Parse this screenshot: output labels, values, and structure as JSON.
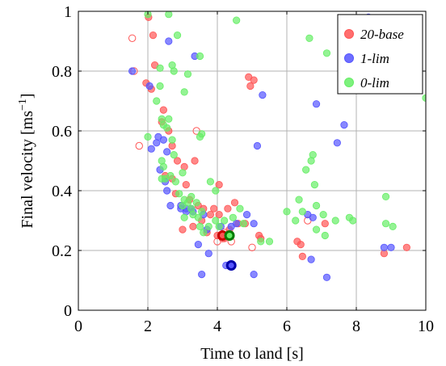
{
  "chart_data": {
    "type": "scatter",
    "xlabel": "Time to land [s]",
    "ylabel": "Final velocity [ms",
    "ylabel_unit_sup": "−1",
    "ylabel_close": "]",
    "xlim": [
      0,
      10
    ],
    "ylim": [
      0,
      1
    ],
    "xticks": [
      0,
      2,
      4,
      6,
      8,
      10
    ],
    "xtick_labels": [
      "0",
      "2",
      "4",
      "6",
      "8",
      "10"
    ],
    "yticks": [
      0,
      0.2,
      0.4,
      0.6,
      0.8,
      1
    ],
    "ytick_labels": [
      "0",
      "0.2",
      "0.4",
      "0.6",
      "0.8",
      "1"
    ],
    "grid": true,
    "legend_position": "top-right",
    "series": [
      {
        "name": "20-base",
        "color": "#ff5555",
        "points": [
          [
            2.02,
            0.98
          ],
          [
            2.15,
            0.92
          ],
          [
            2.2,
            0.82
          ],
          [
            1.95,
            0.76
          ],
          [
            2.1,
            0.74
          ],
          [
            2.45,
            0.67
          ],
          [
            2.6,
            0.6
          ],
          [
            2.7,
            0.55
          ],
          [
            2.85,
            0.5
          ],
          [
            3.05,
            0.48
          ],
          [
            3.35,
            0.5
          ],
          [
            3.1,
            0.42
          ],
          [
            2.7,
            0.44
          ],
          [
            2.5,
            0.45
          ],
          [
            2.8,
            0.39
          ],
          [
            3.2,
            0.37
          ],
          [
            3.45,
            0.35
          ],
          [
            3.9,
            0.34
          ],
          [
            4.05,
            0.32
          ],
          [
            4.3,
            0.34
          ],
          [
            4.5,
            0.36
          ],
          [
            4.6,
            0.29
          ],
          [
            3.8,
            0.32
          ],
          [
            3.55,
            0.3
          ],
          [
            3.3,
            0.28
          ],
          [
            3.0,
            0.27
          ],
          [
            3.7,
            0.26
          ],
          [
            4.0,
            0.25
          ],
          [
            4.2,
            0.24
          ],
          [
            4.35,
            0.27
          ],
          [
            4.8,
            0.29
          ],
          [
            4.9,
            0.78
          ],
          [
            4.95,
            0.75
          ],
          [
            5.05,
            0.77
          ],
          [
            5.2,
            0.25
          ],
          [
            5.25,
            0.24
          ],
          [
            6.3,
            0.23
          ],
          [
            6.4,
            0.22
          ],
          [
            6.45,
            0.18
          ],
          [
            7.1,
            0.29
          ],
          [
            8.8,
            0.19
          ],
          [
            9.45,
            0.21
          ],
          [
            2.4,
            0.63
          ],
          [
            3.6,
            0.34
          ],
          [
            4.05,
            0.42
          ]
        ],
        "hollow": [
          [
            1.55,
            0.91
          ],
          [
            1.75,
            0.55
          ],
          [
            1.6,
            0.8
          ],
          [
            4.4,
            0.23
          ],
          [
            4.0,
            0.23
          ],
          [
            5.0,
            0.21
          ],
          [
            3.4,
            0.6
          ],
          [
            4.2,
            0.26
          ],
          [
            6.6,
            0.3
          ],
          [
            4.15,
            0.24
          ]
        ],
        "highlight": [
          4.15,
          0.25
        ]
      },
      {
        "name": "1-lim",
        "color": "#5555ff",
        "points": [
          [
            1.55,
            0.8
          ],
          [
            2.05,
            0.75
          ],
          [
            2.25,
            0.56
          ],
          [
            2.1,
            0.54
          ],
          [
            2.3,
            0.58
          ],
          [
            2.45,
            0.57
          ],
          [
            2.55,
            0.53
          ],
          [
            2.6,
            0.9
          ],
          [
            2.35,
            0.47
          ],
          [
            2.5,
            0.43
          ],
          [
            2.55,
            0.4
          ],
          [
            2.65,
            0.35
          ],
          [
            2.95,
            0.35
          ],
          [
            3.1,
            0.34
          ],
          [
            3.3,
            0.33
          ],
          [
            3.35,
            0.85
          ],
          [
            3.6,
            0.32
          ],
          [
            3.7,
            0.27
          ],
          [
            3.45,
            0.22
          ],
          [
            3.75,
            0.19
          ],
          [
            3.55,
            0.12
          ],
          [
            4.1,
            0.28
          ],
          [
            4.25,
            0.15
          ],
          [
            4.4,
            0.28
          ],
          [
            4.55,
            0.29
          ],
          [
            4.85,
            0.32
          ],
          [
            5.05,
            0.29
          ],
          [
            5.15,
            0.55
          ],
          [
            5.3,
            0.72
          ],
          [
            5.05,
            0.12
          ],
          [
            6.6,
            0.32
          ],
          [
            6.75,
            0.31
          ],
          [
            6.7,
            0.17
          ],
          [
            6.85,
            0.69
          ],
          [
            7.15,
            0.11
          ],
          [
            7.45,
            0.56
          ],
          [
            7.65,
            0.62
          ],
          [
            8.35,
            0.98
          ],
          [
            8.8,
            0.21
          ],
          [
            9.0,
            0.21
          ],
          [
            2.95,
            0.34
          ],
          [
            3.1,
            0.33
          ],
          [
            3.25,
            0.34
          ]
        ],
        "highlight": [
          4.4,
          0.15
        ]
      },
      {
        "name": "0-lim",
        "color": "#66ee66",
        "points": [
          [
            2.0,
            0.99
          ],
          [
            2.0,
            0.58
          ],
          [
            2.25,
            0.7
          ],
          [
            2.35,
            0.75
          ],
          [
            2.35,
            0.81
          ],
          [
            2.6,
            0.99
          ],
          [
            2.7,
            0.82
          ],
          [
            2.75,
            0.8
          ],
          [
            2.85,
            0.92
          ],
          [
            3.05,
            0.73
          ],
          [
            3.15,
            0.79
          ],
          [
            3.5,
            0.85
          ],
          [
            3.55,
            0.59
          ],
          [
            3.5,
            0.58
          ],
          [
            2.4,
            0.64
          ],
          [
            2.45,
            0.62
          ],
          [
            2.55,
            0.61
          ],
          [
            2.7,
            0.57
          ],
          [
            2.75,
            0.52
          ],
          [
            2.4,
            0.5
          ],
          [
            2.45,
            0.48
          ],
          [
            2.4,
            0.44
          ],
          [
            2.5,
            0.44
          ],
          [
            2.65,
            0.45
          ],
          [
            2.8,
            0.43
          ],
          [
            2.9,
            0.39
          ],
          [
            3.0,
            0.35
          ],
          [
            3.05,
            0.37
          ],
          [
            3.15,
            0.36
          ],
          [
            3.25,
            0.38
          ],
          [
            3.3,
            0.32
          ],
          [
            3.05,
            0.31
          ],
          [
            3.45,
            0.31
          ],
          [
            3.5,
            0.28
          ],
          [
            3.6,
            0.26
          ],
          [
            3.75,
            0.28
          ],
          [
            3.95,
            0.3
          ],
          [
            4.05,
            0.28
          ],
          [
            4.2,
            0.3
          ],
          [
            3.8,
            0.43
          ],
          [
            3.95,
            0.4
          ],
          [
            4.55,
            0.97
          ],
          [
            4.65,
            0.34
          ],
          [
            4.75,
            0.29
          ],
          [
            5.25,
            0.23
          ],
          [
            5.5,
            0.23
          ],
          [
            6.0,
            0.33
          ],
          [
            6.25,
            0.3
          ],
          [
            6.35,
            0.37
          ],
          [
            6.45,
            0.33
          ],
          [
            6.55,
            0.47
          ],
          [
            6.7,
            0.5
          ],
          [
            6.75,
            0.52
          ],
          [
            6.65,
            0.91
          ],
          [
            6.8,
            0.42
          ],
          [
            6.85,
            0.35
          ],
          [
            6.85,
            0.27
          ],
          [
            7.05,
            0.32
          ],
          [
            7.1,
            0.25
          ],
          [
            7.15,
            0.86
          ],
          [
            7.4,
            0.3
          ],
          [
            7.8,
            0.31
          ],
          [
            7.9,
            0.3
          ],
          [
            8.85,
            0.38
          ],
          [
            8.85,
            0.29
          ],
          [
            9.05,
            0.28
          ],
          [
            10.0,
            0.71
          ],
          [
            3.25,
            0.34
          ],
          [
            3.4,
            0.36
          ],
          [
            3.55,
            0.33
          ],
          [
            4.45,
            0.31
          ],
          [
            3.0,
            0.46
          ],
          [
            2.6,
            0.64
          ]
        ],
        "highlight": [
          4.35,
          0.25
        ]
      }
    ]
  }
}
